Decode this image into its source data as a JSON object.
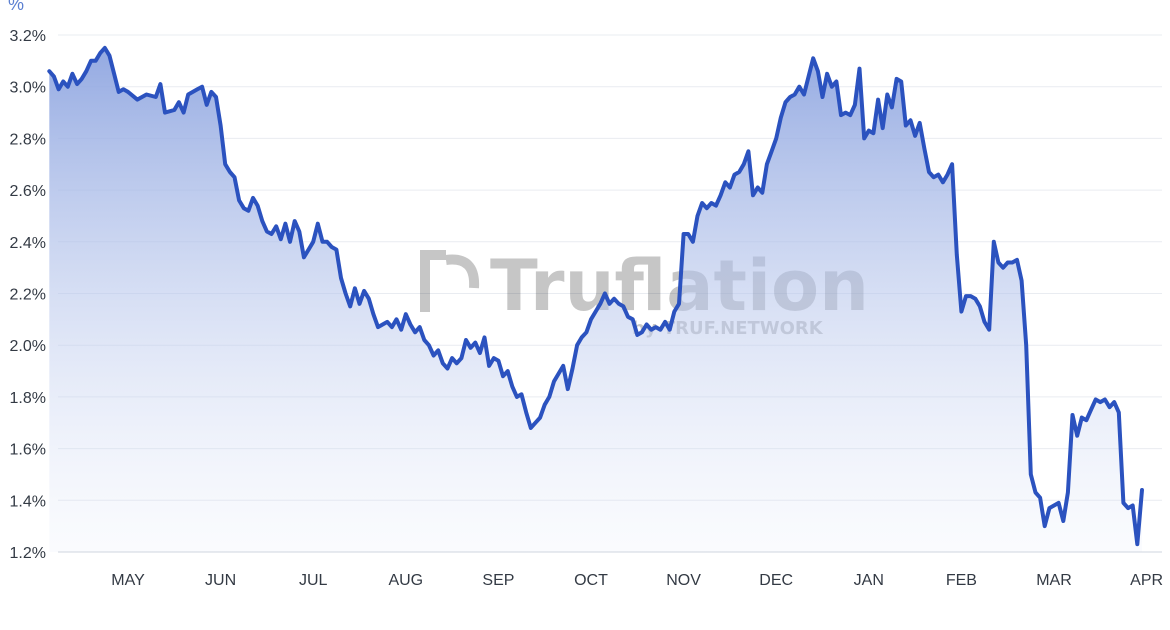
{
  "chart_data": {
    "type": "area",
    "unit_label": "%",
    "ylim": [
      1.2,
      3.2
    ],
    "yticks": [
      "3.2%",
      "3.0%",
      "2.8%",
      "2.6%",
      "2.4%",
      "2.2%",
      "2.0%",
      "1.8%",
      "1.6%",
      "1.4%",
      "1.2%"
    ],
    "xticks": [
      "MAY",
      "JUN",
      "JUL",
      "AUG",
      "SEP",
      "OCT",
      "NOV",
      "DEC",
      "JAN",
      "FEB",
      "MAR",
      "APR"
    ],
    "grid": true,
    "line_color": "#2b52bf",
    "fill_color": "#8ea5e0",
    "watermark": {
      "brand": "Truflation",
      "tagline": "by TRUF.NETWORK"
    },
    "series": [
      {
        "points": [
          [
            -0.85,
            3.06
          ],
          [
            -0.8,
            3.04
          ],
          [
            -0.75,
            2.99
          ],
          [
            -0.7,
            3.02
          ],
          [
            -0.65,
            3.0
          ],
          [
            -0.6,
            3.05
          ],
          [
            -0.55,
            3.01
          ],
          [
            -0.5,
            3.03
          ],
          [
            -0.45,
            3.06
          ],
          [
            -0.4,
            3.1
          ],
          [
            -0.35,
            3.1
          ],
          [
            -0.3,
            3.13
          ],
          [
            -0.25,
            3.15
          ],
          [
            -0.2,
            3.12
          ],
          [
            -0.15,
            3.05
          ],
          [
            -0.1,
            2.98
          ],
          [
            -0.05,
            2.99
          ],
          [
            0.0,
            2.98
          ],
          [
            0.1,
            2.95
          ],
          [
            0.2,
            2.97
          ],
          [
            0.3,
            2.96
          ],
          [
            0.35,
            3.01
          ],
          [
            0.4,
            2.9
          ],
          [
            0.5,
            2.91
          ],
          [
            0.55,
            2.94
          ],
          [
            0.6,
            2.9
          ],
          [
            0.65,
            2.97
          ],
          [
            0.75,
            2.99
          ],
          [
            0.8,
            3.0
          ],
          [
            0.85,
            2.93
          ],
          [
            0.9,
            2.98
          ],
          [
            0.95,
            2.96
          ],
          [
            1.0,
            2.85
          ],
          [
            1.05,
            2.7
          ],
          [
            1.1,
            2.67
          ],
          [
            1.15,
            2.65
          ],
          [
            1.2,
            2.56
          ],
          [
            1.25,
            2.53
          ],
          [
            1.3,
            2.52
          ],
          [
            1.35,
            2.57
          ],
          [
            1.4,
            2.54
          ],
          [
            1.45,
            2.48
          ],
          [
            1.5,
            2.44
          ],
          [
            1.55,
            2.43
          ],
          [
            1.6,
            2.46
          ],
          [
            1.65,
            2.41
          ],
          [
            1.7,
            2.47
          ],
          [
            1.75,
            2.4
          ],
          [
            1.8,
            2.48
          ],
          [
            1.85,
            2.44
          ],
          [
            1.9,
            2.34
          ],
          [
            1.95,
            2.37
          ],
          [
            2.0,
            2.4
          ],
          [
            2.05,
            2.47
          ],
          [
            2.1,
            2.4
          ],
          [
            2.15,
            2.4
          ],
          [
            2.2,
            2.38
          ],
          [
            2.25,
            2.37
          ],
          [
            2.3,
            2.26
          ],
          [
            2.35,
            2.2
          ],
          [
            2.4,
            2.15
          ],
          [
            2.45,
            2.22
          ],
          [
            2.5,
            2.16
          ],
          [
            2.55,
            2.21
          ],
          [
            2.6,
            2.18
          ],
          [
            2.65,
            2.12
          ],
          [
            2.7,
            2.07
          ],
          [
            2.75,
            2.08
          ],
          [
            2.8,
            2.09
          ],
          [
            2.85,
            2.07
          ],
          [
            2.9,
            2.1
          ],
          [
            2.95,
            2.06
          ],
          [
            3.0,
            2.12
          ],
          [
            3.05,
            2.08
          ],
          [
            3.1,
            2.05
          ],
          [
            3.15,
            2.07
          ],
          [
            3.2,
            2.02
          ],
          [
            3.25,
            2.0
          ],
          [
            3.3,
            1.96
          ],
          [
            3.35,
            1.98
          ],
          [
            3.4,
            1.93
          ],
          [
            3.45,
            1.91
          ],
          [
            3.5,
            1.95
          ],
          [
            3.55,
            1.93
          ],
          [
            3.6,
            1.95
          ],
          [
            3.65,
            2.02
          ],
          [
            3.7,
            1.99
          ],
          [
            3.75,
            2.01
          ],
          [
            3.8,
            1.97
          ],
          [
            3.85,
            2.03
          ],
          [
            3.9,
            1.92
          ],
          [
            3.95,
            1.95
          ],
          [
            4.0,
            1.94
          ],
          [
            4.05,
            1.88
          ],
          [
            4.1,
            1.9
          ],
          [
            4.15,
            1.84
          ],
          [
            4.2,
            1.8
          ],
          [
            4.25,
            1.81
          ],
          [
            4.3,
            1.74
          ],
          [
            4.35,
            1.68
          ],
          [
            4.4,
            1.7
          ],
          [
            4.45,
            1.72
          ],
          [
            4.5,
            1.77
          ],
          [
            4.55,
            1.8
          ],
          [
            4.6,
            1.86
          ],
          [
            4.65,
            1.89
          ],
          [
            4.7,
            1.92
          ],
          [
            4.75,
            1.83
          ],
          [
            4.8,
            1.91
          ],
          [
            4.85,
            2.0
          ],
          [
            4.9,
            2.03
          ],
          [
            4.95,
            2.05
          ],
          [
            5.0,
            2.1
          ],
          [
            5.05,
            2.13
          ],
          [
            5.1,
            2.16
          ],
          [
            5.15,
            2.2
          ],
          [
            5.2,
            2.16
          ],
          [
            5.25,
            2.18
          ],
          [
            5.3,
            2.16
          ],
          [
            5.35,
            2.15
          ],
          [
            5.4,
            2.11
          ],
          [
            5.45,
            2.1
          ],
          [
            5.5,
            2.04
          ],
          [
            5.55,
            2.05
          ],
          [
            5.6,
            2.08
          ],
          [
            5.65,
            2.06
          ],
          [
            5.7,
            2.07
          ],
          [
            5.75,
            2.06
          ],
          [
            5.8,
            2.09
          ],
          [
            5.85,
            2.06
          ],
          [
            5.9,
            2.13
          ],
          [
            5.95,
            2.16
          ],
          [
            6.0,
            2.43
          ],
          [
            6.05,
            2.43
          ],
          [
            6.1,
            2.4
          ],
          [
            6.15,
            2.5
          ],
          [
            6.2,
            2.55
          ],
          [
            6.25,
            2.53
          ],
          [
            6.3,
            2.55
          ],
          [
            6.35,
            2.54
          ],
          [
            6.4,
            2.58
          ],
          [
            6.45,
            2.63
          ],
          [
            6.5,
            2.61
          ],
          [
            6.55,
            2.66
          ],
          [
            6.6,
            2.67
          ],
          [
            6.65,
            2.7
          ],
          [
            6.7,
            2.75
          ],
          [
            6.75,
            2.58
          ],
          [
            6.8,
            2.61
          ],
          [
            6.85,
            2.59
          ],
          [
            6.9,
            2.7
          ],
          [
            6.95,
            2.75
          ],
          [
            7.0,
            2.8
          ],
          [
            7.05,
            2.88
          ],
          [
            7.1,
            2.94
          ],
          [
            7.15,
            2.96
          ],
          [
            7.2,
            2.97
          ],
          [
            7.25,
            3.0
          ],
          [
            7.3,
            2.97
          ],
          [
            7.35,
            3.04
          ],
          [
            7.4,
            3.11
          ],
          [
            7.45,
            3.06
          ],
          [
            7.5,
            2.96
          ],
          [
            7.55,
            3.05
          ],
          [
            7.6,
            3.0
          ],
          [
            7.65,
            3.02
          ],
          [
            7.7,
            2.89
          ],
          [
            7.75,
            2.9
          ],
          [
            7.8,
            2.89
          ],
          [
            7.85,
            2.93
          ],
          [
            7.9,
            3.07
          ],
          [
            7.95,
            2.8
          ],
          [
            8.0,
            2.83
          ],
          [
            8.05,
            2.82
          ],
          [
            8.1,
            2.95
          ],
          [
            8.15,
            2.84
          ],
          [
            8.2,
            2.97
          ],
          [
            8.25,
            2.92
          ],
          [
            8.3,
            3.03
          ],
          [
            8.35,
            3.02
          ],
          [
            8.4,
            2.85
          ],
          [
            8.45,
            2.87
          ],
          [
            8.5,
            2.81
          ],
          [
            8.55,
            2.86
          ],
          [
            8.6,
            2.76
          ],
          [
            8.65,
            2.67
          ],
          [
            8.7,
            2.65
          ],
          [
            8.75,
            2.66
          ],
          [
            8.8,
            2.63
          ],
          [
            8.85,
            2.66
          ],
          [
            8.9,
            2.7
          ],
          [
            8.95,
            2.35
          ],
          [
            9.0,
            2.13
          ],
          [
            9.05,
            2.19
          ],
          [
            9.1,
            2.19
          ],
          [
            9.15,
            2.18
          ],
          [
            9.2,
            2.15
          ],
          [
            9.25,
            2.09
          ],
          [
            9.3,
            2.06
          ],
          [
            9.35,
            2.4
          ],
          [
            9.4,
            2.32
          ],
          [
            9.45,
            2.3
          ],
          [
            9.5,
            2.32
          ],
          [
            9.55,
            2.32
          ],
          [
            9.6,
            2.33
          ],
          [
            9.65,
            2.25
          ],
          [
            9.7,
            2.0
          ],
          [
            9.75,
            1.5
          ],
          [
            9.8,
            1.43
          ],
          [
            9.85,
            1.41
          ],
          [
            9.9,
            1.3
          ],
          [
            9.95,
            1.37
          ],
          [
            10.0,
            1.38
          ],
          [
            10.05,
            1.39
          ],
          [
            10.1,
            1.32
          ],
          [
            10.15,
            1.43
          ],
          [
            10.2,
            1.73
          ],
          [
            10.25,
            1.65
          ],
          [
            10.3,
            1.72
          ],
          [
            10.35,
            1.71
          ],
          [
            10.4,
            1.75
          ],
          [
            10.45,
            1.79
          ],
          [
            10.5,
            1.78
          ],
          [
            10.55,
            1.79
          ],
          [
            10.6,
            1.76
          ],
          [
            10.65,
            1.78
          ],
          [
            10.7,
            1.74
          ],
          [
            10.75,
            1.39
          ],
          [
            10.8,
            1.37
          ],
          [
            10.85,
            1.38
          ],
          [
            10.9,
            1.23
          ],
          [
            10.95,
            1.44
          ]
        ]
      }
    ]
  }
}
